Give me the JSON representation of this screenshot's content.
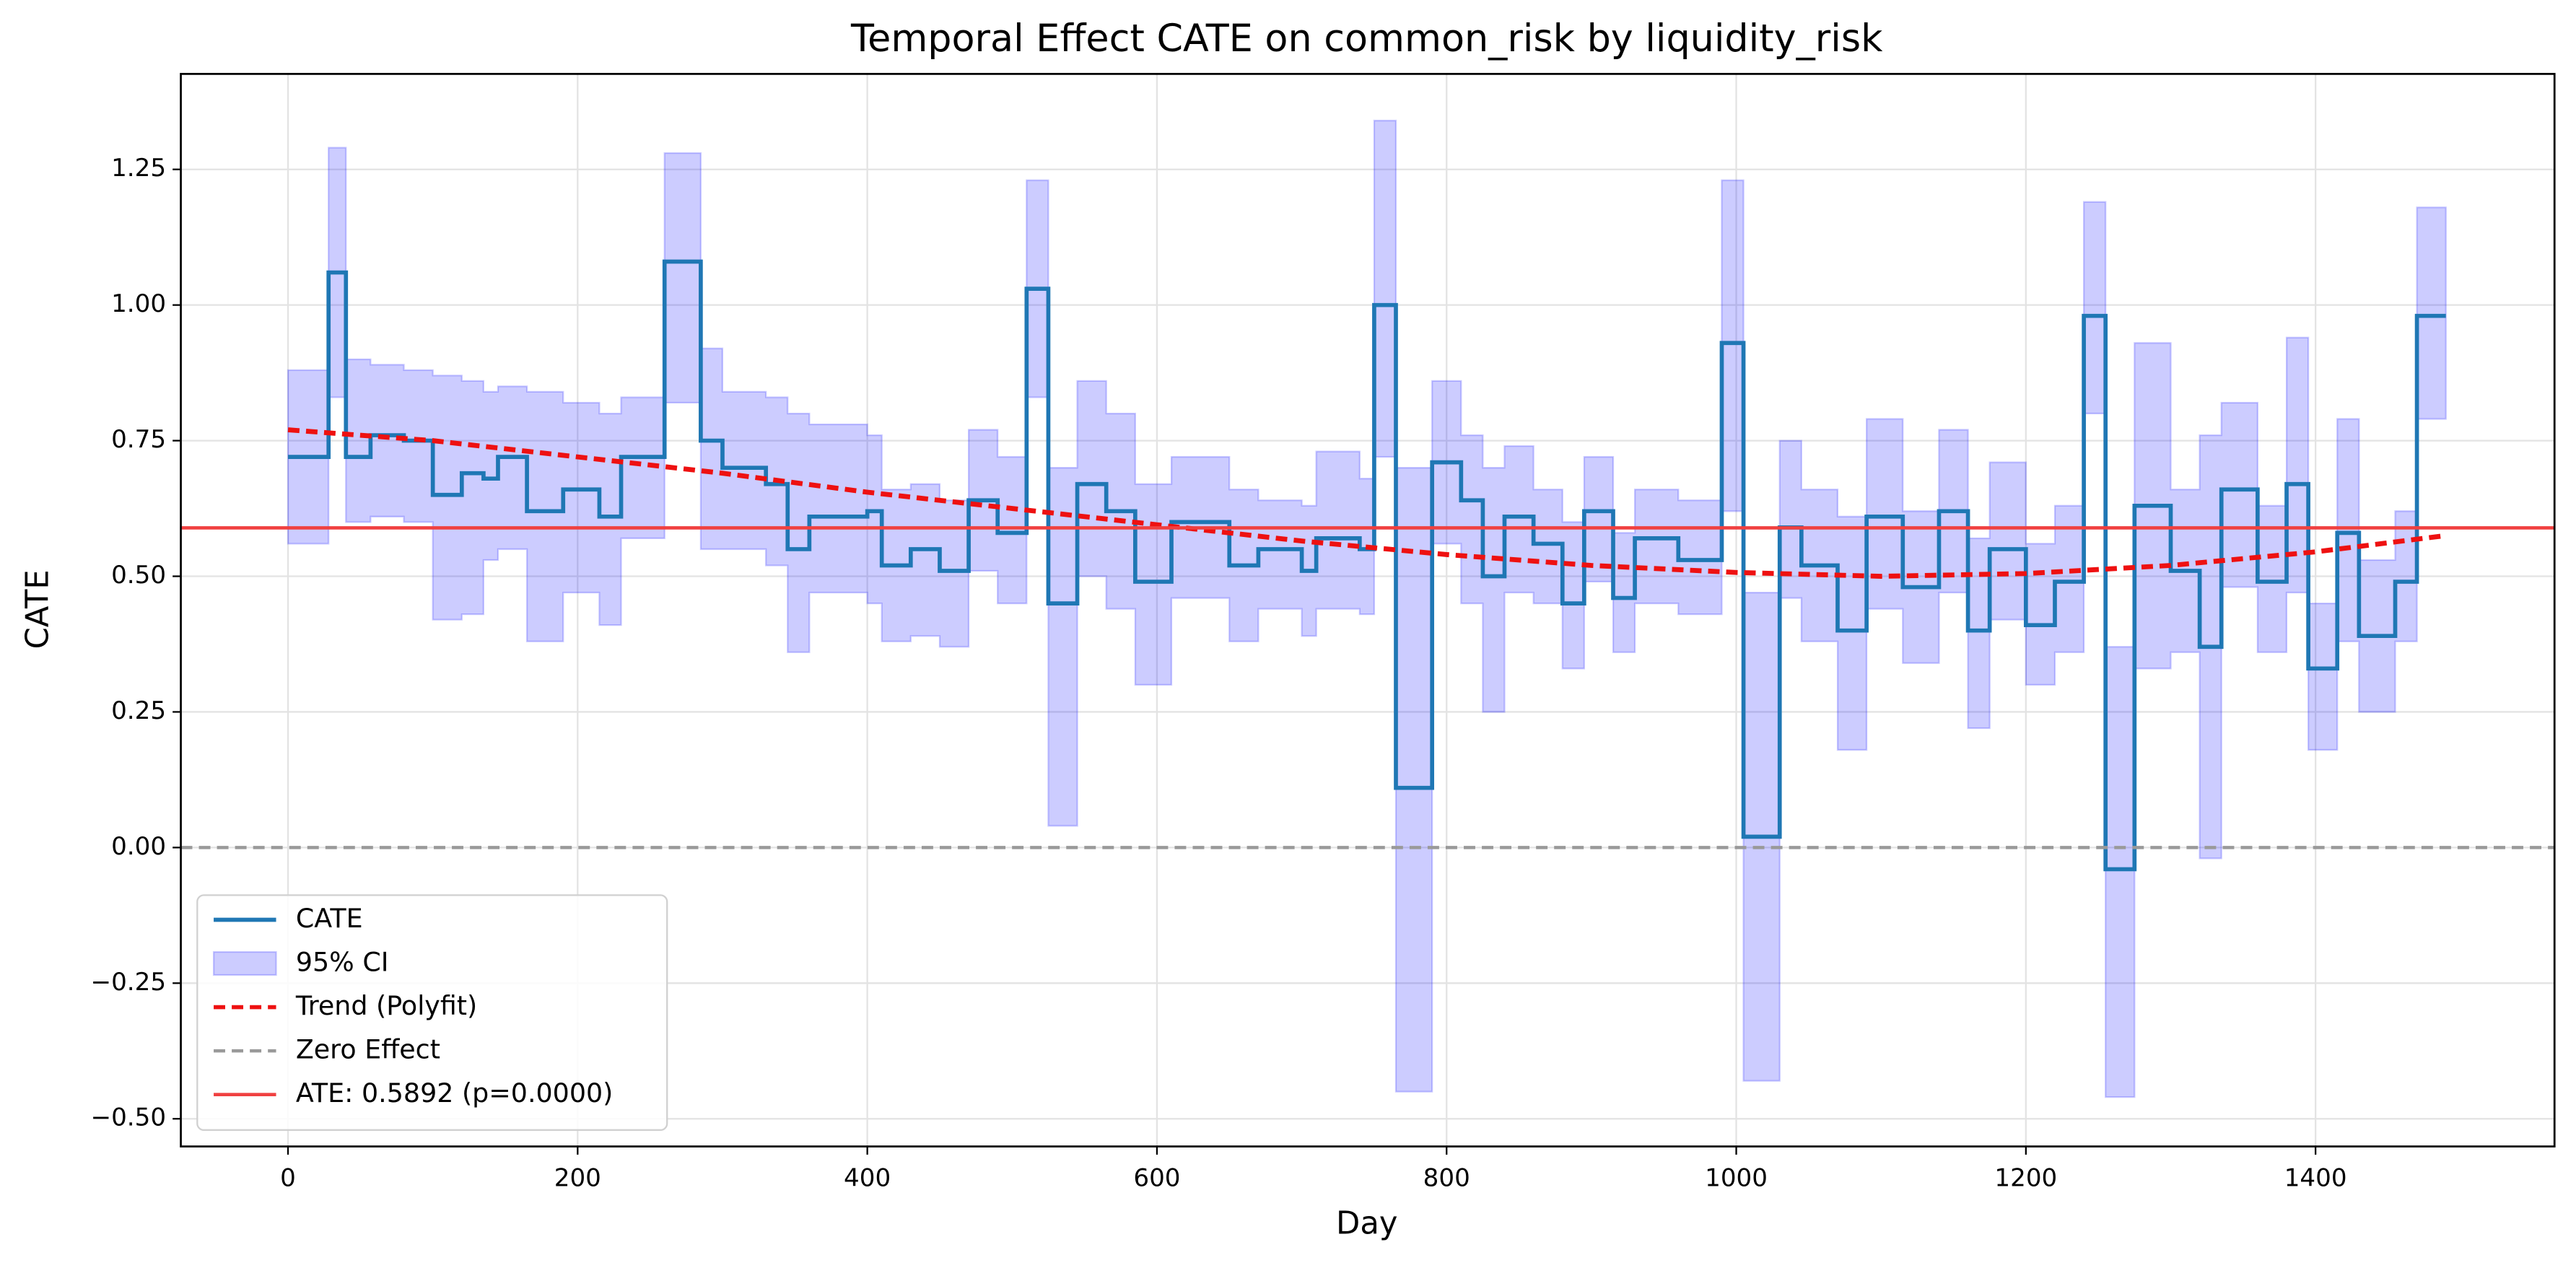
{
  "chart_data": {
    "type": "line",
    "title": "Temporal Effect CATE  on common_risk by liquidity_risk",
    "x_label": "Day",
    "y_label": "CATE",
    "xlim": [
      -74,
      1565
    ],
    "ylim": [
      -0.551,
      1.426
    ],
    "xticks": [
      0,
      200,
      400,
      600,
      800,
      1000,
      1200,
      1400
    ],
    "yticks": [
      {
        "value": -0.5,
        "label": "−0.50"
      },
      {
        "value": -0.25,
        "label": "−0.25"
      },
      {
        "value": 0,
        "label": "0.00"
      },
      0.25,
      {
        "value": 0.5,
        "label": "0.50"
      },
      0.75,
      {
        "value": 1,
        "label": "1.00"
      },
      1.25
    ],
    "grid": true,
    "legend": "lower left",
    "series": [
      {
        "name": "CATE",
        "color": "#1f77b4",
        "drawstyle": "steps-post",
        "x": [
          0,
          28,
          40,
          57,
          80,
          100,
          120,
          135,
          145,
          165,
          190,
          215,
          230,
          260,
          285,
          300,
          330,
          345,
          360,
          400,
          410,
          430,
          450,
          470,
          490,
          510,
          525,
          545,
          565,
          585,
          610,
          650,
          670,
          700,
          710,
          740,
          750,
          765,
          790,
          810,
          825,
          840,
          860,
          880,
          895,
          915,
          930,
          960,
          990,
          1005,
          1030,
          1045,
          1070,
          1090,
          1115,
          1140,
          1160,
          1175,
          1200,
          1220,
          1240,
          1255,
          1275,
          1300,
          1320,
          1335,
          1360,
          1380,
          1395,
          1415,
          1430,
          1455,
          1470,
          1490
        ],
        "values": [
          0.72,
          1.06,
          0.72,
          0.76,
          0.75,
          0.65,
          0.69,
          0.68,
          0.72,
          0.62,
          0.66,
          0.61,
          0.72,
          1.08,
          0.75,
          0.7,
          0.67,
          0.55,
          0.61,
          0.62,
          0.52,
          0.55,
          0.51,
          0.64,
          0.58,
          1.03,
          0.45,
          0.67,
          0.62,
          0.49,
          0.6,
          0.52,
          0.55,
          0.51,
          0.57,
          0.55,
          1.0,
          0.11,
          0.71,
          0.64,
          0.5,
          0.61,
          0.56,
          0.45,
          0.62,
          0.46,
          0.57,
          0.53,
          0.93,
          0.02,
          0.59,
          0.52,
          0.4,
          0.61,
          0.48,
          0.62,
          0.4,
          0.55,
          0.41,
          0.49,
          0.98,
          -0.04,
          0.63,
          0.51,
          0.37,
          0.66,
          0.49,
          0.67,
          0.33,
          0.58,
          0.39,
          0.49,
          0.98,
          0.98
        ]
      },
      {
        "name": "95% CI",
        "color": "#0000ff",
        "kind": "band",
        "drawstyle": "steps-post",
        "lower": [
          0.56,
          0.83,
          0.6,
          0.61,
          0.6,
          0.42,
          0.43,
          0.53,
          0.55,
          0.38,
          0.47,
          0.41,
          0.57,
          0.82,
          0.55,
          0.55,
          0.52,
          0.36,
          0.47,
          0.45,
          0.38,
          0.39,
          0.37,
          0.51,
          0.45,
          0.83,
          0.04,
          0.5,
          0.44,
          0.3,
          0.46,
          0.38,
          0.44,
          0.39,
          0.44,
          0.43,
          0.72,
          -0.45,
          0.56,
          0.45,
          0.25,
          0.47,
          0.45,
          0.33,
          0.49,
          0.36,
          0.45,
          0.43,
          0.62,
          -0.43,
          0.46,
          0.38,
          0.18,
          0.44,
          0.34,
          0.47,
          0.22,
          0.42,
          0.3,
          0.36,
          0.8,
          -0.46,
          0.33,
          0.36,
          -0.02,
          0.48,
          0.36,
          0.47,
          0.18,
          0.38,
          0.25,
          0.38,
          0.79,
          0.79
        ],
        "upper": [
          0.88,
          1.29,
          0.9,
          0.89,
          0.88,
          0.87,
          0.86,
          0.84,
          0.85,
          0.84,
          0.82,
          0.8,
          0.83,
          1.28,
          0.92,
          0.84,
          0.83,
          0.8,
          0.78,
          0.76,
          0.66,
          0.67,
          0.64,
          0.77,
          0.72,
          1.23,
          0.7,
          0.86,
          0.8,
          0.67,
          0.72,
          0.66,
          0.64,
          0.63,
          0.73,
          0.68,
          1.34,
          0.7,
          0.86,
          0.76,
          0.7,
          0.74,
          0.66,
          0.6,
          0.72,
          0.58,
          0.66,
          0.64,
          1.23,
          0.47,
          0.75,
          0.66,
          0.61,
          0.79,
          0.62,
          0.77,
          0.57,
          0.71,
          0.56,
          0.63,
          1.19,
          0.37,
          0.93,
          0.66,
          0.76,
          0.82,
          0.63,
          0.94,
          0.45,
          0.79,
          0.53,
          0.62,
          1.18,
          1.18
        ]
      },
      {
        "name": "Trend (Polyfit)",
        "color": "#ee1111",
        "style": "dashed",
        "x": [
          0,
          100,
          200,
          300,
          400,
          500,
          600,
          700,
          800,
          900,
          1000,
          1100,
          1200,
          1300,
          1400,
          1490
        ],
        "values": [
          0.77,
          0.75,
          0.72,
          0.69,
          0.655,
          0.625,
          0.595,
          0.565,
          0.54,
          0.52,
          0.507,
          0.5,
          0.505,
          0.52,
          0.545,
          0.575
        ]
      },
      {
        "name": "Zero Effect",
        "color": "#999999",
        "style": "dashed",
        "hline": 0
      },
      {
        "name": "ATE: 0.5892 (p=0.0000)",
        "color": "#f04040",
        "hline": 0.5892
      }
    ]
  }
}
